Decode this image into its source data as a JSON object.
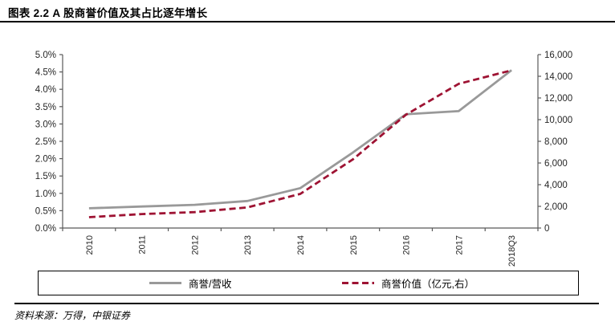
{
  "header": {
    "title": "图表 2.2 A 股商誉价值及其占比逐年增长"
  },
  "footer": {
    "source": "资料来源：万得，中银证券"
  },
  "legend": {
    "items": [
      {
        "label": "商誉/营收",
        "style": "solid",
        "color": "#999999"
      },
      {
        "label": "商誉价值（亿元,右）",
        "style": "dashed",
        "color": "#9e1333"
      }
    ]
  },
  "colors": {
    "series_goodwill_ratio": "#999999",
    "series_goodwill_value": "#9e1333",
    "axis": "#595959",
    "text": "#262626",
    "rule": "#000000"
  },
  "chart_data": {
    "type": "line",
    "title": "图表 2.2 A 股商誉价值及其占比逐年增长",
    "categories": [
      "2010",
      "2011",
      "2012",
      "2013",
      "2014",
      "2015",
      "2016",
      "2017",
      "2018Q3"
    ],
    "series": [
      {
        "name": "商誉/营收",
        "axis": "left",
        "unit": "%",
        "color": "#999999",
        "line_style": "solid",
        "values": [
          0.57,
          0.62,
          0.67,
          0.78,
          1.15,
          2.18,
          3.28,
          3.37,
          4.55
        ]
      },
      {
        "name": "商誉价值（亿元,右）",
        "axis": "right",
        "unit": "亿元",
        "color": "#9e1333",
        "line_style": "dashed",
        "values": [
          1000,
          1290,
          1470,
          1900,
          3150,
          6350,
          10450,
          13300,
          14550
        ]
      }
    ],
    "left_axis": {
      "min": 0,
      "max": 5,
      "ticks": [
        "0.0%",
        "0.5%",
        "1.0%",
        "1.5%",
        "2.0%",
        "2.5%",
        "3.0%",
        "3.5%",
        "4.0%",
        "4.5%",
        "5.0%"
      ]
    },
    "right_axis": {
      "min": 0,
      "max": 16000,
      "ticks": [
        "0",
        "2,000",
        "4,000",
        "6,000",
        "8,000",
        "10,000",
        "12,000",
        "14,000",
        "16,000"
      ]
    },
    "grid": false,
    "legend_position": "bottom"
  }
}
